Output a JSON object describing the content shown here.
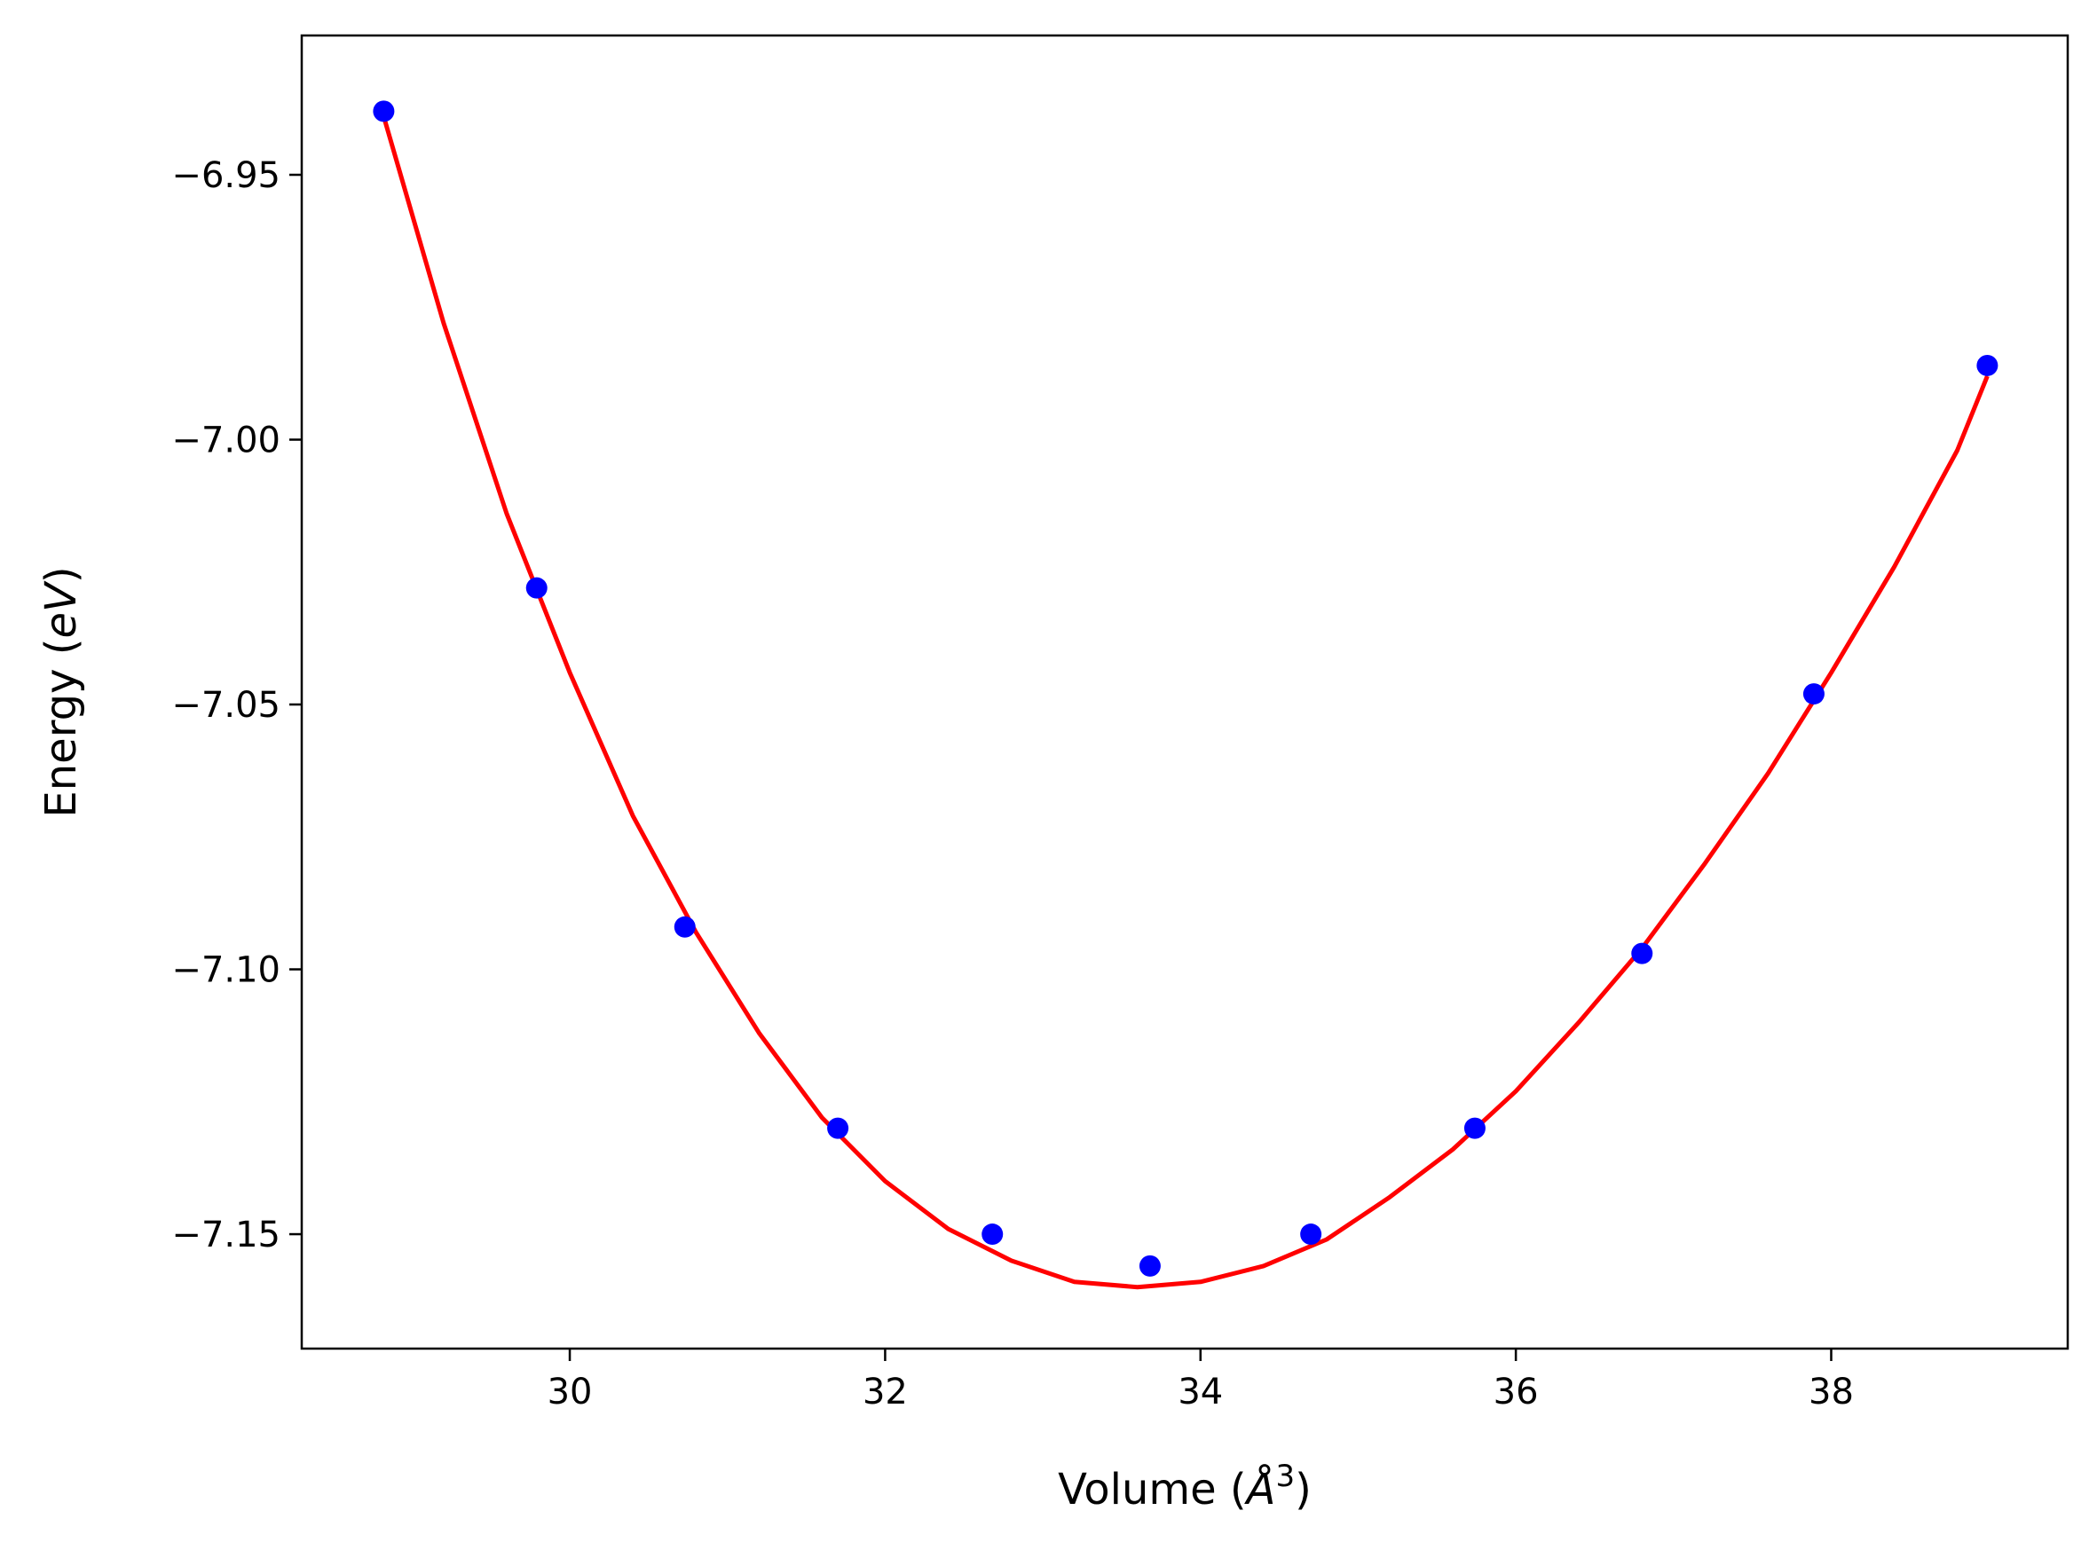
{
  "chart_data": {
    "type": "scatter",
    "title": "",
    "xlabel_prefix": "Volume (",
    "xlabel_unit": "Å",
    "xlabel_exp": "3",
    "xlabel_suffix": ")",
    "ylabel_prefix": "Energy (",
    "ylabel_unit": "eV",
    "ylabel_suffix": ")",
    "xlim": [
      28.3,
      39.5
    ],
    "ylim": [
      -7.1716,
      -6.9237
    ],
    "x_ticks": [
      30,
      32,
      34,
      36,
      38
    ],
    "x_tick_labels": [
      "30",
      "32",
      "34",
      "36",
      "38"
    ],
    "y_ticks": [
      -6.95,
      -7.0,
      -7.05,
      -7.1,
      -7.15
    ],
    "y_tick_labels": [
      "−6.95",
      "−7.00",
      "−7.05",
      "−7.10",
      "−7.15"
    ],
    "grid": false,
    "series": [
      {
        "kind": "points",
        "color": "#0000ff",
        "x": [
          28.82,
          29.79,
          30.73,
          31.7,
          32.68,
          33.68,
          34.7,
          35.74,
          36.8,
          37.89,
          38.99
        ],
        "y": [
          -6.938,
          -7.028,
          -7.092,
          -7.13,
          -7.15,
          -7.156,
          -7.15,
          -7.13,
          -7.097,
          -7.048,
          -6.986
        ]
      },
      {
        "kind": "fit-curve",
        "color": "#ff0000",
        "x": [
          28.82,
          29.2,
          29.6,
          30.0,
          30.4,
          30.8,
          31.2,
          31.6,
          32.0,
          32.4,
          32.8,
          33.2,
          33.6,
          34.0,
          34.4,
          34.8,
          35.2,
          35.6,
          36.0,
          36.4,
          36.8,
          37.2,
          37.6,
          38.0,
          38.4,
          38.8,
          38.99
        ],
        "y": [
          -6.939,
          -6.978,
          -7.014,
          -7.044,
          -7.071,
          -7.093,
          -7.112,
          -7.128,
          -7.14,
          -7.149,
          -7.155,
          -7.159,
          -7.16,
          -7.159,
          -7.156,
          -7.151,
          -7.143,
          -7.134,
          -7.123,
          -7.11,
          -7.096,
          -7.08,
          -7.063,
          -7.044,
          -7.024,
          -7.002,
          -6.988
        ]
      }
    ]
  }
}
